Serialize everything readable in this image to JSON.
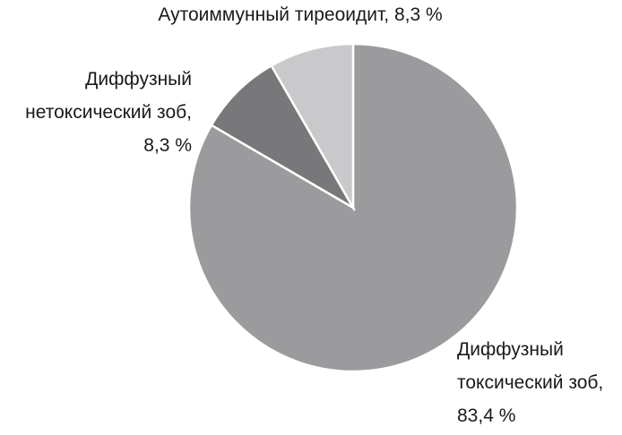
{
  "chart_data": {
    "type": "pie",
    "categories": [
      "Диффузный токсический зоб,",
      "Диффузный нетоксический зоб,",
      "Аутоиммунный тиреоидит,"
    ],
    "values": [
      83.4,
      8.3,
      8.3
    ],
    "value_labels": [
      "83,4 %",
      "8,3 %",
      "8,3 %"
    ],
    "colors": [
      "#9b9b9d",
      "#78787b",
      "#c9c9cb"
    ]
  }
}
